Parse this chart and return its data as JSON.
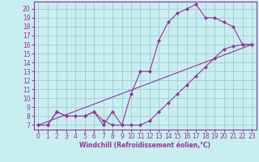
{
  "xlabel": "Windchill (Refroidissement éolien,°C)",
  "bg_color": "#c8eef0",
  "grid_color": "#a0ccd4",
  "line_color": "#993399",
  "spine_color": "#7777aa",
  "xlim": [
    -0.5,
    23.5
  ],
  "ylim": [
    6.5,
    20.8
  ],
  "xticks": [
    0,
    1,
    2,
    3,
    4,
    5,
    6,
    7,
    8,
    9,
    10,
    11,
    12,
    13,
    14,
    15,
    16,
    17,
    18,
    19,
    20,
    21,
    22,
    23
  ],
  "yticks": [
    7,
    8,
    9,
    10,
    11,
    12,
    13,
    14,
    15,
    16,
    17,
    18,
    19,
    20
  ],
  "line1_x": [
    0,
    1,
    2,
    3,
    4,
    5,
    6,
    7,
    8,
    9,
    10,
    11,
    12,
    13,
    14,
    15,
    16,
    17,
    18,
    19,
    20,
    21,
    22,
    23
  ],
  "line1_y": [
    7,
    7,
    8.5,
    8,
    8,
    8,
    8.5,
    7,
    8.5,
    7,
    10.5,
    13,
    13,
    16.5,
    18.5,
    19.5,
    20,
    20.5,
    19,
    19,
    18.5,
    18,
    16,
    16
  ],
  "line2_x": [
    0,
    1,
    2,
    3,
    4,
    5,
    6,
    7,
    8,
    9,
    10,
    11,
    12,
    13,
    14,
    15,
    16,
    17,
    18,
    19,
    20,
    21,
    22,
    23
  ],
  "line2_y": [
    7,
    7,
    8.5,
    8,
    8,
    8,
    8.5,
    7.5,
    7,
    7,
    7,
    7,
    7.5,
    8.5,
    9.5,
    10.5,
    11.5,
    12.5,
    13.5,
    14.5,
    15.5,
    15.8,
    16,
    16
  ],
  "line3_x": [
    0,
    23
  ],
  "line3_y": [
    7,
    16
  ],
  "tick_fontsize": 5.5,
  "xlabel_fontsize": 5.5
}
